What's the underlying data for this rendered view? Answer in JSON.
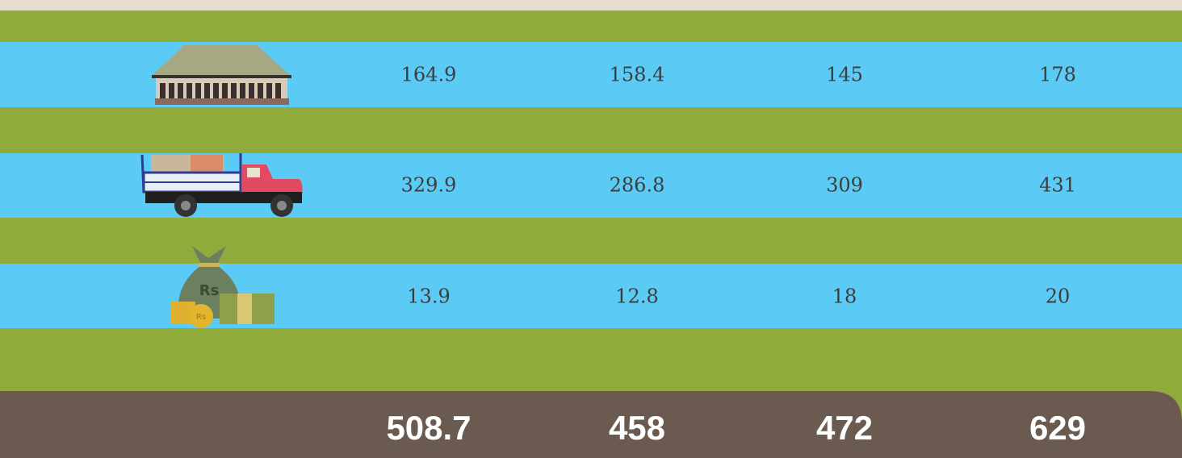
{
  "table": {
    "rows": [
      {
        "values": [
          164.9,
          158.4,
          145,
          178
        ]
      },
      {
        "values": [
          329.9,
          286.8,
          309,
          431
        ]
      },
      {
        "values": [
          13.9,
          12.8,
          18,
          20
        ]
      }
    ],
    "totals": [
      508.7,
      458,
      472,
      629
    ]
  }
}
